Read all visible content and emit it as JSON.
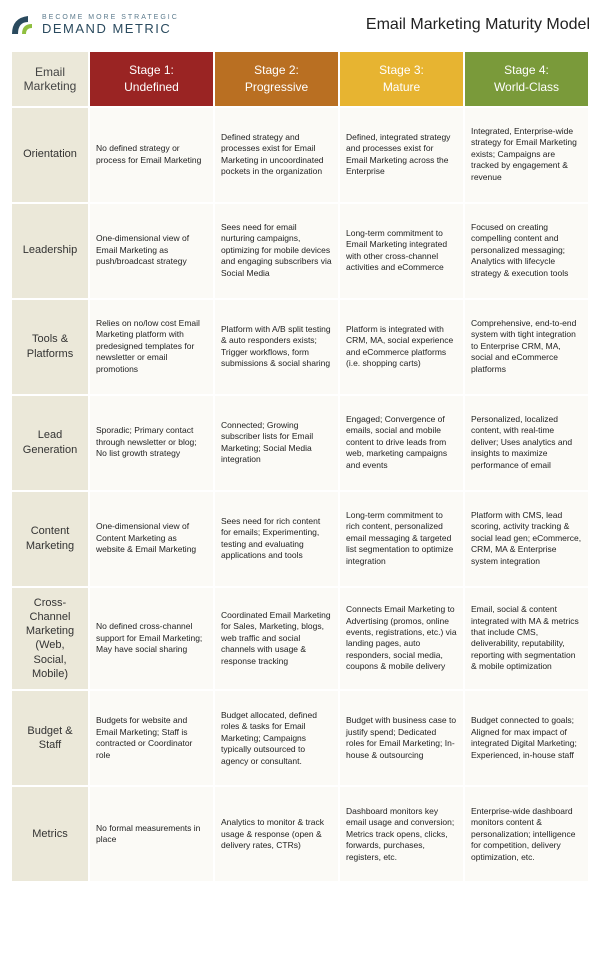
{
  "header": {
    "tagline": "Become More Strategic",
    "brand": "DEMAND METRIC",
    "page_title": "Email Marketing Maturity Model"
  },
  "colors": {
    "corner_bg": "#ebe8d9",
    "cell_bg": "#fbfaf6",
    "stage1": "#9a2423",
    "stage2": "#b96f22",
    "stage3": "#e7b431",
    "stage4": "#7a9a3a",
    "logo_dark": "#2a4a5e",
    "logo_green": "#8fbf3f"
  },
  "table": {
    "corner": "Email Marketing",
    "stages": [
      "Stage 1: Undefined",
      "Stage 2: Progressive",
      "Stage 3: Mature",
      "Stage 4: World-Class"
    ],
    "rows": [
      {
        "label": "Orientation",
        "cells": [
          "No defined strategy or process for Email Marketing",
          "Defined strategy and processes exist for Email Marketing in uncoordinated pockets in the organization",
          "Defined, integrated strategy and processes exist for Email Marketing across the Enterprise",
          "Integrated, Enterprise-wide strategy for Email Marketing exists; Campaigns are tracked by engagement & revenue"
        ]
      },
      {
        "label": "Leadership",
        "cells": [
          "One-dimensional view of Email Marketing as push/broadcast strategy",
          "Sees need for email nurturing campaigns, optimizing for mobile devices and engaging subscribers via Social Media",
          "Long-term commitment to Email Marketing integrated with other cross-channel activities and eCommerce",
          "Focused on creating compelling content and personalized messaging; Analytics with lifecycle strategy & execution tools"
        ]
      },
      {
        "label": "Tools & Platforms",
        "cells": [
          "Relies on no/low cost Email Marketing platform with predesigned templates for newsletter or email promotions",
          "Platform with A/B split testing & auto responders exists; Trigger workflows, form submissions & social sharing",
          "Platform is integrated with CRM, MA, social experience and eCommerce platforms (i.e. shopping carts)",
          "Comprehensive, end-to-end system with tight integration to Enterprise CRM, MA, social and eCommerce platforms"
        ]
      },
      {
        "label": "Lead Generation",
        "cells": [
          "Sporadic; Primary contact through newsletter or blog; No list growth strategy",
          "Connected; Growing subscriber lists for Email Marketing; Social Media integration",
          "Engaged; Convergence of emails, social and mobile content to drive leads from web, marketing campaigns and events",
          "Personalized, localized content, with real-time deliver; Uses analytics and insights to maximize performance of email"
        ]
      },
      {
        "label": "Content Marketing",
        "cells": [
          "One-dimensional view of Content Marketing as website & Email Marketing",
          "Sees need for rich content for emails; Experimenting, testing and evaluating applications and tools",
          "Long-term commitment to rich content, personalized email messaging & targeted list segmentation to optimize integration",
          "Platform with CMS, lead scoring, activity tracking & social lead gen; eCommerce, CRM, MA & Enterprise system integration"
        ]
      },
      {
        "label": "Cross-Channel Marketing (Web, Social, Mobile)",
        "cells": [
          "No defined cross-channel support for Email Marketing; May have social sharing",
          "Coordinated Email Marketing for Sales, Marketing, blogs, web traffic and social channels with usage & response tracking",
          "Connects Email Marketing to Advertising (promos, online events, registrations, etc.) via landing pages, auto responders, social media, coupons & mobile delivery",
          "Email, social & content integrated with MA & metrics that include CMS, deliverability, reputability, reporting with segmentation & mobile optimization"
        ]
      },
      {
        "label": "Budget & Staff",
        "cells": [
          "Budgets for website and Email Marketing; Staff is contracted or Coordinator role",
          "Budget allocated, defined roles & tasks for Email Marketing; Campaigns typically outsourced to agency or consultant.",
          "Budget with business case to justify spend; Dedicated roles for Email Marketing; In-house & outsourcing",
          "Budget connected to goals; Aligned for max impact of integrated Digital Marketing; Experienced, in-house staff"
        ]
      },
      {
        "label": "Metrics",
        "cells": [
          "No formal measurements in place",
          "Analytics to monitor & track usage & response (open & delivery rates, CTRs)",
          "Dashboard monitors key email usage and conversion; Metrics track opens, clicks, forwards, purchases, registers, etc.",
          "Enterprise-wide dashboard monitors content & personalization; intelligence for competition, delivery optimization, etc."
        ]
      }
    ]
  }
}
